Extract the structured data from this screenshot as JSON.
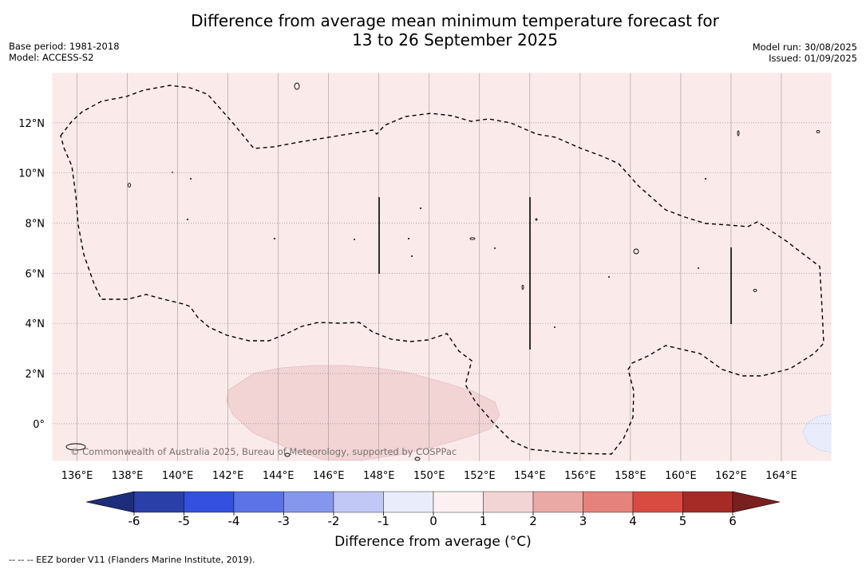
{
  "title_line1": "Difference from average mean minimum temperature forecast for",
  "title_line2": "13 to 26 September 2025",
  "base_period": "Base period: 1981-2018",
  "model": "Model: ACCESS-S2",
  "model_run": "Model run: 30/08/2025",
  "issued": "Issued: 01/09/2025",
  "map": {
    "lon_range": [
      135.0,
      166.0
    ],
    "lat_range": [
      -1.5,
      14.0
    ],
    "lon_labels": [
      "136°E",
      "138°E",
      "140°E",
      "142°E",
      "144°E",
      "146°E",
      "148°E",
      "150°E",
      "152°E",
      "154°E",
      "156°E",
      "158°E",
      "160°E",
      "162°E",
      "164°E"
    ],
    "lon_values": [
      136,
      138,
      140,
      142,
      144,
      146,
      148,
      150,
      152,
      154,
      156,
      158,
      160,
      162,
      164
    ],
    "lat_labels": [
      "12°N",
      "10°N",
      "8°N",
      "6°N",
      "4°N",
      "2°N",
      "0°"
    ],
    "lat_values": [
      12,
      10,
      8,
      6,
      4,
      2,
      0
    ],
    "background_color": "#fbeaea",
    "warm_patch_color": "#f2d4d4",
    "cool_patch_color": "#e9ecfb",
    "copyright": "© Commonwealth of Australia 2025, Bureau of Meteorology, supported by COSPPac"
  },
  "colorbar": {
    "ticks": [
      "-6",
      "-5",
      "-4",
      "-3",
      "-2",
      "-1",
      "0",
      "1",
      "2",
      "3",
      "4",
      "5",
      "6"
    ],
    "colors": [
      "#2a3fa8",
      "#3350e0",
      "#5b73e6",
      "#8597ec",
      "#c1c8f5",
      "#e9ecfb",
      "#fdf0f0",
      "#f2d4d4",
      "#eba9a5",
      "#e5827b",
      "#d94b40",
      "#a62b26"
    ],
    "under_color": "#1e2d7a",
    "over_color": "#7a1f1f",
    "label": "Difference from average (°C)"
  },
  "footnote": "-- -- -- EEZ border V11 (Flanders Marine Institute, 2019)."
}
